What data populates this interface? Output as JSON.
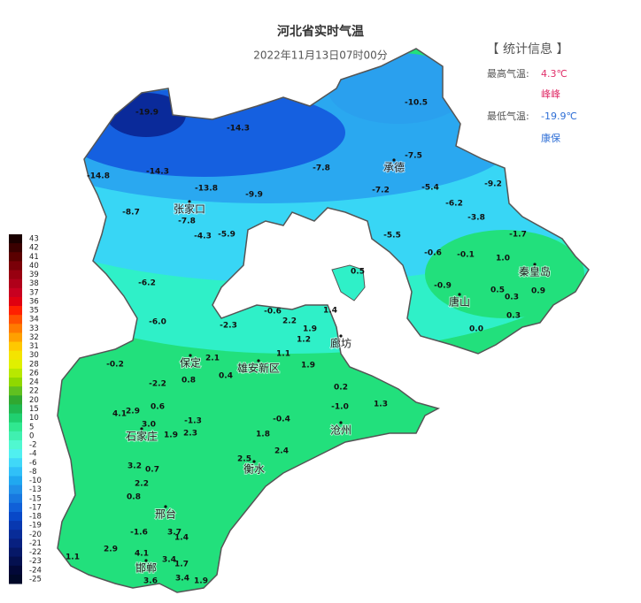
{
  "title": "河北省实时气温",
  "subtitle": "2022年11月13日07时00分",
  "stats": {
    "header": "【 统计信息 】",
    "max_label": "最高气温:",
    "max_value": "4.3℃",
    "max_station": "峰峰",
    "min_label": "最低气温:",
    "min_value": "-19.9℃",
    "min_station": "康保"
  },
  "legend": {
    "labels": [
      43,
      42,
      41,
      40,
      39,
      38,
      37,
      36,
      35,
      34,
      33,
      32,
      31,
      30,
      28,
      26,
      24,
      22,
      20,
      15,
      10,
      5,
      0,
      -2,
      -4,
      -6,
      -8,
      -10,
      -13,
      -15,
      -17,
      -18,
      -19,
      -20,
      -21,
      -22,
      -23,
      -24,
      -25
    ]
  },
  "cities": [
    "张家口",
    "承德",
    "秦皇岛",
    "唐山",
    "廊坊",
    "保定",
    "雄安新区",
    "沧州",
    "石家庄",
    "衡水",
    "邢台",
    "邯郸"
  ],
  "temperatures": [
    "-19.9",
    "-14.3",
    "-14.3",
    "-14.8",
    "-13.8",
    "-9.9",
    "-8.7",
    "-7.8",
    "-4.3",
    "-5.9",
    "-6.2",
    "-6.0",
    "-10.5",
    "-7.8",
    "-7.5",
    "-7.2",
    "-5.4",
    "-9.2",
    "-6.2",
    "-3.8",
    "-5.5",
    "-1.7",
    "-0.6",
    "-0.1",
    "1.0",
    "-0.9",
    "0.5",
    "0.3",
    "0.9",
    "0.3",
    "0.0",
    "0.5",
    "-2.3",
    "-0.6",
    "2.2",
    "1.4",
    "1.9",
    "1.2",
    "1.9",
    "-0.2",
    "-2.2",
    "2.1",
    "0.8",
    "1.1",
    "0.4",
    "0.2",
    "1.3",
    "-1.0",
    "4.1",
    "2.9",
    "3.0",
    "1.9",
    "2.3",
    "1.8",
    "2.4",
    "0.6",
    "-0.4",
    "3.2",
    "0.7",
    "2.2",
    "2.5",
    "0.8",
    "-1.3",
    "2.9",
    "4.1",
    "3.4",
    "1.7",
    "3.6",
    "3.4",
    "1.9",
    "1.1",
    "-1.6",
    "3.7",
    "1.4"
  ]
}
